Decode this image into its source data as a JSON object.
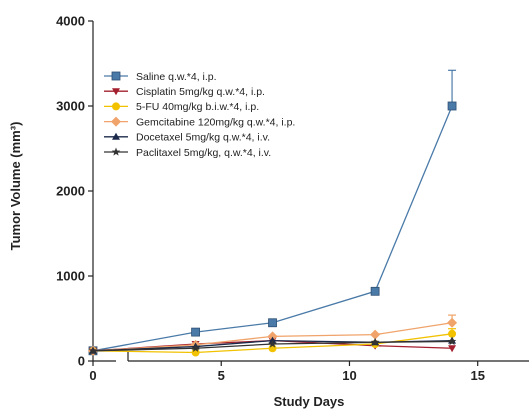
{
  "chart_data": {
    "type": "line",
    "title": "",
    "xlabel": "Study Days",
    "ylabel": "Tumor Volume (mm³)",
    "xlim": [
      0,
      17
    ],
    "ylim": [
      0,
      4000
    ],
    "xticks": [
      0,
      5,
      10,
      15
    ],
    "yticks": [
      0,
      1000,
      2000,
      3000,
      4000
    ],
    "grid": false,
    "legend_position": "top-left",
    "series": [
      {
        "name": "Saline q.w.*4, i.p.",
        "color": "#4a7aa8",
        "marker": "square",
        "x": [
          0,
          4,
          7,
          11,
          14
        ],
        "y": [
          120,
          340,
          450,
          820,
          3000
        ],
        "error_upper": [
          0,
          0,
          0,
          0,
          420
        ]
      },
      {
        "name": "Cisplatin 5mg/kg q.w.*4, i.p.",
        "color": "#a31f2e",
        "marker": "triangle-down",
        "x": [
          0,
          4,
          7,
          11,
          14
        ],
        "y": [
          120,
          200,
          240,
          180,
          150
        ],
        "error_upper": [
          0,
          0,
          0,
          0,
          0
        ]
      },
      {
        "name": "5-FU 40mg/kg b.i.w.*4, i.p.",
        "color": "#f2c200",
        "marker": "circle",
        "x": [
          0,
          4,
          7,
          11,
          14
        ],
        "y": [
          120,
          100,
          150,
          200,
          320
        ],
        "error_upper": [
          0,
          0,
          0,
          0,
          60
        ]
      },
      {
        "name": "Gemcitabine 120mg/kg q.w.*4, i.p.",
        "color": "#f0a36a",
        "marker": "diamond",
        "x": [
          0,
          4,
          7,
          11,
          14
        ],
        "y": [
          120,
          190,
          290,
          310,
          450
        ],
        "error_upper": [
          0,
          0,
          0,
          0,
          90
        ]
      },
      {
        "name": "Docetaxel 5mg/kg q.w.*4, i.v.",
        "color": "#1b2a4a",
        "marker": "triangle-up",
        "x": [
          0,
          4,
          7,
          11,
          14
        ],
        "y": [
          120,
          170,
          240,
          220,
          240
        ],
        "error_upper": [
          0,
          0,
          0,
          0,
          0
        ]
      },
      {
        "name": "Paclitaxel 5mg/kg, q.w.*4, i.v.",
        "color": "#333333",
        "marker": "star",
        "x": [
          0,
          4,
          7,
          11,
          14
        ],
        "y": [
          120,
          150,
          200,
          220,
          230
        ],
        "error_upper": [
          0,
          0,
          0,
          0,
          0
        ]
      }
    ]
  }
}
